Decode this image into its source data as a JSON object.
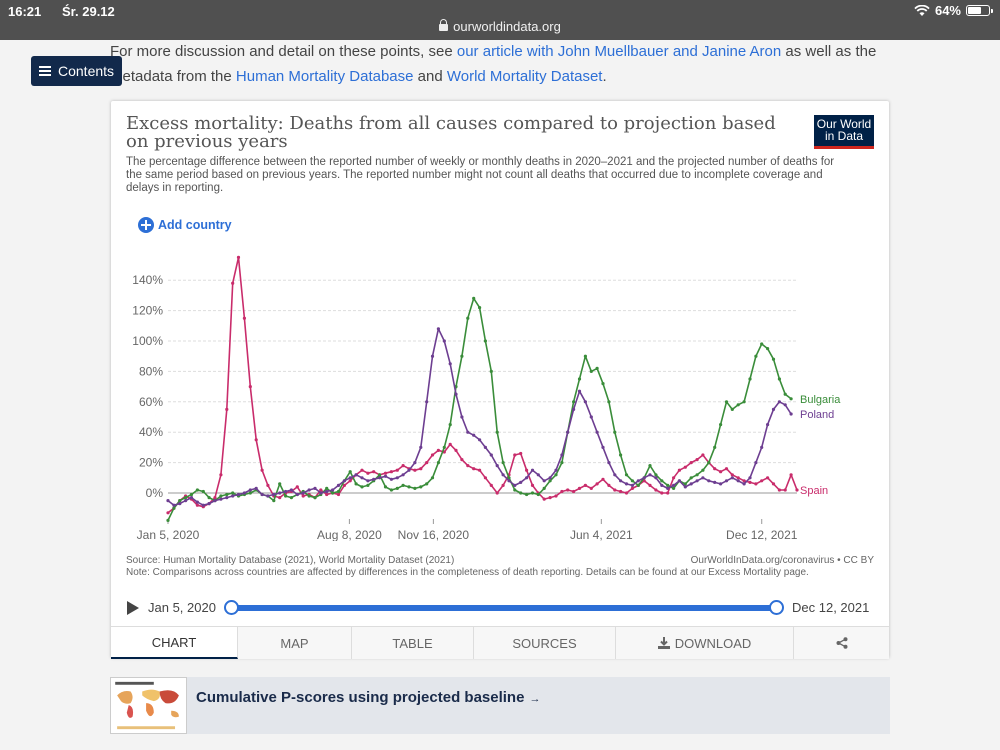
{
  "status_bar": {
    "time": "16:21",
    "date": "Śr. 29.12",
    "url": "ourworldindata.org",
    "battery": "64%",
    "battery_level": 0.64
  },
  "intro": {
    "text1": "For more discussion and detail on these points, see ",
    "link1": "our article with John Muellbauer and Janine Aron",
    "text2": " as well as the",
    "text3": "metadata from the ",
    "link2": "Human Mortality Database",
    "text4": " and ",
    "link3": "World Mortality Dataset",
    "text5": "."
  },
  "contents_button": "Contents",
  "card": {
    "title": "Excess mortality: Deaths from all causes compared to projection based on previous years",
    "logo_line1": "Our World",
    "logo_line2": "in Data",
    "subtitle": "The percentage difference between the reported number of weekly or monthly deaths in 2020–2021 and the projected number of deaths for the same period based on previous years. The reported number might not count all deaths that occurred due to incomplete coverage and delays in reporting.",
    "add_country": "Add country",
    "source": "Source: Human Mortality Database (2021), World Mortality Dataset (2021)",
    "source_right": "OurWorldInData.org/coronavirus • CC BY",
    "note": "Note: Comparisons across countries are affected by differences in the completeness of death reporting. Details can be found at our Excess Mortality page.",
    "timeline_start": "Jan 5, 2020",
    "timeline_end": "Dec 12, 2021",
    "tabs": {
      "chart": "CHART",
      "map": "MAP",
      "table": "TABLE",
      "sources": "SOURCES",
      "download": "DOWNLOAD"
    }
  },
  "related": {
    "title": "Cumulative P-scores using projected baseline",
    "arrow": "→"
  },
  "chart_data": {
    "type": "line",
    "title": "Excess mortality: Deaths from all causes compared to projection based on previous years",
    "x_start": "2020-01-05",
    "x_step_days": 7,
    "x_ticks": [
      {
        "date": "2020-01-05",
        "label": "Jan 5, 2020"
      },
      {
        "date": "2020-08-08",
        "label": "Aug 8, 2020"
      },
      {
        "date": "2020-11-16",
        "label": "Nov 16, 2020"
      },
      {
        "date": "2021-06-04",
        "label": "Jun 4, 2021"
      },
      {
        "date": "2021-12-12",
        "label": "Dec 12, 2021"
      }
    ],
    "y_ticks": [
      0,
      20,
      40,
      60,
      80,
      100,
      120,
      140
    ],
    "y_tick_labels": [
      "0%",
      "20%",
      "40%",
      "60%",
      "80%",
      "100%",
      "120%",
      "140%"
    ],
    "ylim": [
      -20,
      160
    ],
    "grid": true,
    "legend_placement": "right-end-labels",
    "series": [
      {
        "name": "Spain",
        "color": "#c92c6b",
        "values": [
          -13,
          -10,
          -5,
          -2,
          -4,
          -8,
          -9,
          -7,
          -3,
          12,
          55,
          138,
          155,
          115,
          70,
          35,
          15,
          5,
          -2,
          -3,
          0,
          1,
          4,
          -2,
          -1,
          -3,
          2,
          -1,
          0,
          -1,
          5,
          8,
          12,
          15,
          13,
          14,
          12,
          13,
          14,
          15,
          18,
          16,
          15,
          16,
          20,
          25,
          28,
          27,
          32,
          28,
          22,
          18,
          16,
          15,
          10,
          5,
          0,
          5,
          12,
          25,
          26,
          15,
          5,
          0,
          -4,
          -3,
          -2,
          1,
          2,
          1,
          3,
          5,
          3,
          6,
          9,
          5,
          2,
          1,
          0,
          3,
          5,
          8,
          5,
          2,
          0,
          0,
          10,
          15,
          17,
          20,
          22,
          25,
          20,
          16,
          14,
          16,
          12,
          10,
          8,
          7,
          6,
          8,
          10,
          6,
          2,
          2,
          12,
          2
        ]
      },
      {
        "name": "Bulgaria",
        "color": "#3a8d3a",
        "values": [
          -18,
          -10,
          -5,
          -3,
          -1,
          2,
          1,
          -3,
          -5,
          -2,
          -1,
          0,
          -2,
          -1,
          0,
          2,
          -1,
          -2,
          -5,
          6,
          -2,
          -3,
          -1,
          1,
          -2,
          -3,
          -1,
          3,
          0,
          1,
          8,
          14,
          6,
          4,
          5,
          8,
          12,
          4,
          2,
          3,
          5,
          4,
          3,
          4,
          6,
          10,
          20,
          30,
          45,
          70,
          90,
          115,
          128,
          122,
          100,
          80,
          40,
          20,
          10,
          2,
          0,
          -1,
          0,
          -1,
          3,
          8,
          12,
          20,
          40,
          60,
          75,
          90,
          80,
          82,
          72,
          60,
          40,
          25,
          12,
          8,
          5,
          10,
          18,
          12,
          8,
          5,
          3,
          8,
          6,
          10,
          12,
          15,
          20,
          30,
          45,
          60,
          55,
          58,
          60,
          75,
          90,
          98,
          95,
          88,
          75,
          65,
          62
        ]
      },
      {
        "name": "Poland",
        "color": "#6d3e91",
        "values": [
          -5,
          -8,
          -7,
          -5,
          -3,
          -6,
          -8,
          -7,
          -5,
          -4,
          -3,
          -2,
          -1,
          0,
          2,
          3,
          -1,
          -2,
          -1,
          0,
          1,
          2,
          -1,
          0,
          2,
          3,
          0,
          1,
          2,
          5,
          8,
          10,
          12,
          10,
          8,
          9,
          10,
          11,
          9,
          10,
          12,
          15,
          20,
          30,
          60,
          90,
          108,
          100,
          85,
          65,
          50,
          40,
          38,
          35,
          30,
          25,
          18,
          12,
          8,
          5,
          7,
          10,
          15,
          12,
          8,
          10,
          15,
          25,
          40,
          55,
          67,
          60,
          50,
          40,
          30,
          20,
          12,
          8,
          6,
          5,
          8,
          10,
          12,
          10,
          5,
          3,
          5,
          8,
          4,
          6,
          8,
          10,
          8,
          7,
          6,
          8,
          10,
          8,
          6,
          10,
          20,
          30,
          45,
          55,
          60,
          58,
          52
        ]
      }
    ]
  }
}
